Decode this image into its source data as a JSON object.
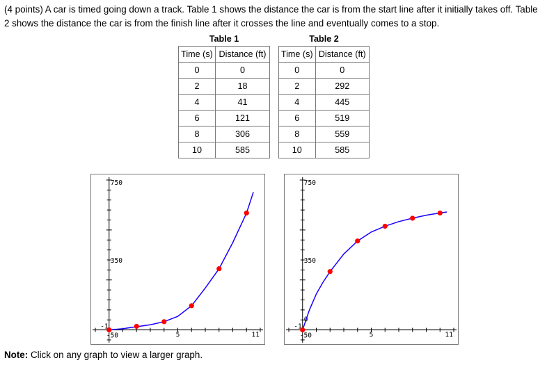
{
  "problem": {
    "text": "(4 points) A car is timed going down a track. Table 1 shows the distance the car is from the start line after it initially takes off. Table 2 shows the distance the car is from the finish line after it crosses the line and eventually comes to a stop."
  },
  "tables": [
    {
      "title": "Table 1",
      "headers": [
        "Time (s)",
        "Distance (ft)"
      ],
      "rows": [
        [
          "0",
          "0"
        ],
        [
          "2",
          "18"
        ],
        [
          "4",
          "41"
        ],
        [
          "6",
          "121"
        ],
        [
          "8",
          "306"
        ],
        [
          "10",
          "585"
        ]
      ]
    },
    {
      "title": "Table 2",
      "headers": [
        "Time (s)",
        "Distance (ft)"
      ],
      "rows": [
        [
          "0",
          "0"
        ],
        [
          "2",
          "292"
        ],
        [
          "4",
          "445"
        ],
        [
          "6",
          "519"
        ],
        [
          "8",
          "559"
        ],
        [
          "10",
          "585"
        ]
      ]
    }
  ],
  "note": {
    "bold": "Note:",
    "text": " Click on any graph to view a larger graph."
  },
  "colors": {
    "curve": "#1a00ff",
    "points": "#ff0000",
    "axis": "#000000"
  },
  "chart_data": [
    {
      "type": "scatter",
      "xlim": [
        -1,
        11
      ],
      "ylim": [
        -50,
        750
      ],
      "tick_labels": {
        "x_min": "-1",
        "x_mid": "5",
        "x_max": "11",
        "y_min": "-50",
        "y_mid": "350",
        "y_max": "750"
      },
      "points": [
        [
          0,
          0
        ],
        [
          2,
          18
        ],
        [
          4,
          41
        ],
        [
          6,
          121
        ],
        [
          8,
          306
        ],
        [
          10,
          585
        ]
      ],
      "curve": [
        [
          0,
          0
        ],
        [
          1,
          6
        ],
        [
          2,
          16
        ],
        [
          3,
          26
        ],
        [
          4,
          41
        ],
        [
          5,
          68
        ],
        [
          6,
          121
        ],
        [
          7,
          210
        ],
        [
          8,
          306
        ],
        [
          9,
          437
        ],
        [
          10,
          585
        ],
        [
          10.5,
          690
        ]
      ]
    },
    {
      "type": "scatter",
      "xlim": [
        -1,
        11
      ],
      "ylim": [
        -50,
        750
      ],
      "tick_labels": {
        "x_min": "-1",
        "x_mid": "5",
        "x_max": "11",
        "y_min": "-50",
        "y_mid": "350",
        "y_max": "750",
        "y_extra": "0"
      },
      "points": [
        [
          0,
          0
        ],
        [
          2,
          292
        ],
        [
          4,
          445
        ],
        [
          6,
          519
        ],
        [
          8,
          559
        ],
        [
          10,
          585
        ]
      ],
      "curve": [
        [
          0,
          0
        ],
        [
          0.5,
          100
        ],
        [
          1,
          180
        ],
        [
          1.5,
          240
        ],
        [
          2,
          292
        ],
        [
          3,
          380
        ],
        [
          4,
          445
        ],
        [
          5,
          490
        ],
        [
          6,
          519
        ],
        [
          7,
          542
        ],
        [
          8,
          559
        ],
        [
          9,
          574
        ],
        [
          10,
          585
        ],
        [
          10.5,
          590
        ]
      ]
    }
  ]
}
